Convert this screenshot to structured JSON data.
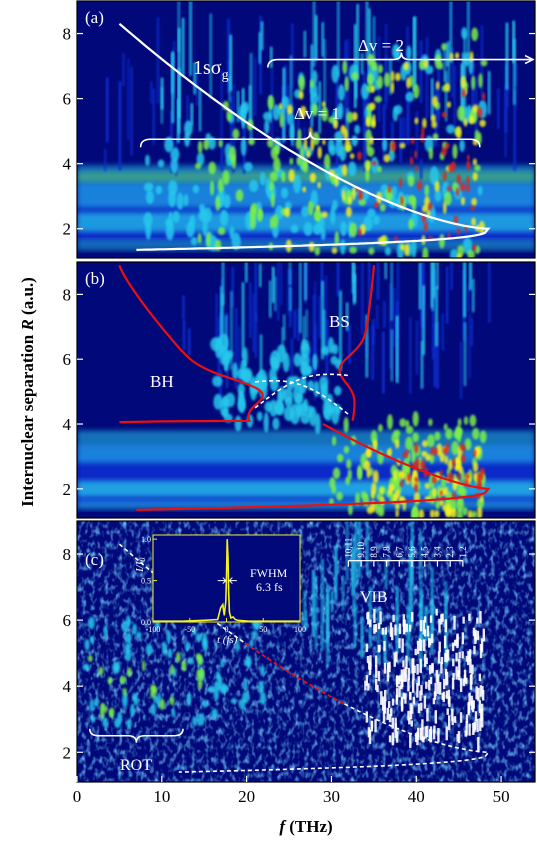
{
  "figure": {
    "ylabel_prefix": "Internuclear separation ",
    "ylabel_var": "R",
    "ylabel_unit": " (a.u.)",
    "xlabel_var": "f",
    "xlabel_unit": " (THz)",
    "colors": {
      "background": "#00087a",
      "low": "#0a2fd0",
      "mid": "#28c8ec",
      "green": "#7cf04a",
      "yellow": "#f5f020",
      "red": "#e0281e",
      "curve_red": "#e81010",
      "white": "#ffffff"
    }
  },
  "chart_data": [
    {
      "type": "heatmap",
      "panel_label": "(a)",
      "xlim": [
        0,
        54
      ],
      "ylim": [
        1.1,
        9
      ],
      "xticks": [
        0,
        10,
        20,
        30,
        40,
        50
      ],
      "yticks": [
        2,
        4,
        6,
        8
      ],
      "annotations": [
        {
          "text": "1sσ",
          "sub": "g",
          "x": 13,
          "y": 7.3
        },
        {
          "text": "Δv = 1",
          "x": 27,
          "y": 5.15
        },
        {
          "text": "Δv = 2",
          "x": 38,
          "y": 7.6
        }
      ],
      "brackets": [
        {
          "label": "Δv = 1",
          "x_from": 7.5,
          "x_to": 47.5,
          "y": 4.75
        },
        {
          "label": "Δv = 2",
          "x_from": 22.5,
          "x_to": 54,
          "y": 7.2
        }
      ],
      "curve": {
        "name": "1sσg",
        "R_eq": 2.0,
        "f_max": 48.5
      }
    },
    {
      "type": "heatmap",
      "panel_label": "(b)",
      "xlim": [
        0,
        54
      ],
      "ylim": [
        1.1,
        9
      ],
      "xticks": [
        0,
        10,
        20,
        30,
        40,
        50
      ],
      "yticks": [
        2,
        4,
        6,
        8
      ],
      "annotations": [
        {
          "text": "BH",
          "x": 10.5,
          "y": 5.3
        },
        {
          "text": "BS",
          "x": 31,
          "y": 7.0
        }
      ],
      "curves": [
        {
          "name": "BH",
          "crossing_R": 4.9,
          "crossing_f": 26.5
        },
        {
          "name": "BS",
          "crossing_R": 4.9,
          "crossing_f": 26.5
        }
      ]
    },
    {
      "type": "heatmap",
      "panel_label": "(c)",
      "xlim": [
        0,
        54
      ],
      "ylim": [
        1.1,
        9
      ],
      "xticks": [
        0,
        10,
        20,
        30,
        40,
        50
      ],
      "yticks": [
        2,
        4,
        6,
        8
      ],
      "annotations": [
        {
          "text": "ROT",
          "x": 6.5,
          "y": 1.6
        },
        {
          "text": "VIB",
          "x": 37.5,
          "y": 7.2
        }
      ],
      "vib_labels": [
        "10,11",
        "9,10",
        "8,9",
        "7,8",
        "6,7",
        "5,6",
        "4,5",
        "3,4",
        "2,3",
        "1,2"
      ],
      "inset": {
        "type": "line",
        "ylabel": "I/I",
        "ylabel_sub": "0",
        "xlabel": "t (fs)",
        "xticks": [
          -100,
          -50,
          0,
          50,
          100
        ],
        "xtick_labels": [
          "-100",
          "-50",
          "0",
          "50",
          "100"
        ],
        "yticks": [
          0.0,
          0.5,
          1.0
        ],
        "ytick_labels": [
          "0.0",
          "0.5",
          "1.0"
        ],
        "xlim": [
          -100,
          100
        ],
        "ylim": [
          0,
          1.05
        ],
        "annotation_line1": "FWHM",
        "annotation_line2": "6.3 fs",
        "series": [
          {
            "x": [
              -100,
              -60,
              -30,
              -12,
              -8,
              -5,
              -3,
              -1,
              0,
              1,
              2,
              3,
              4,
              6,
              9,
              12,
              15,
              30,
              60,
              100
            ],
            "y": [
              0.01,
              0.01,
              0.02,
              0.03,
              0.17,
              0.21,
              0.08,
              0.25,
              0.55,
              1.0,
              0.78,
              0.35,
              0.12,
              0.05,
              0.06,
              0.03,
              0.02,
              0.01,
              0.01,
              0.01
            ]
          }
        ]
      }
    }
  ]
}
